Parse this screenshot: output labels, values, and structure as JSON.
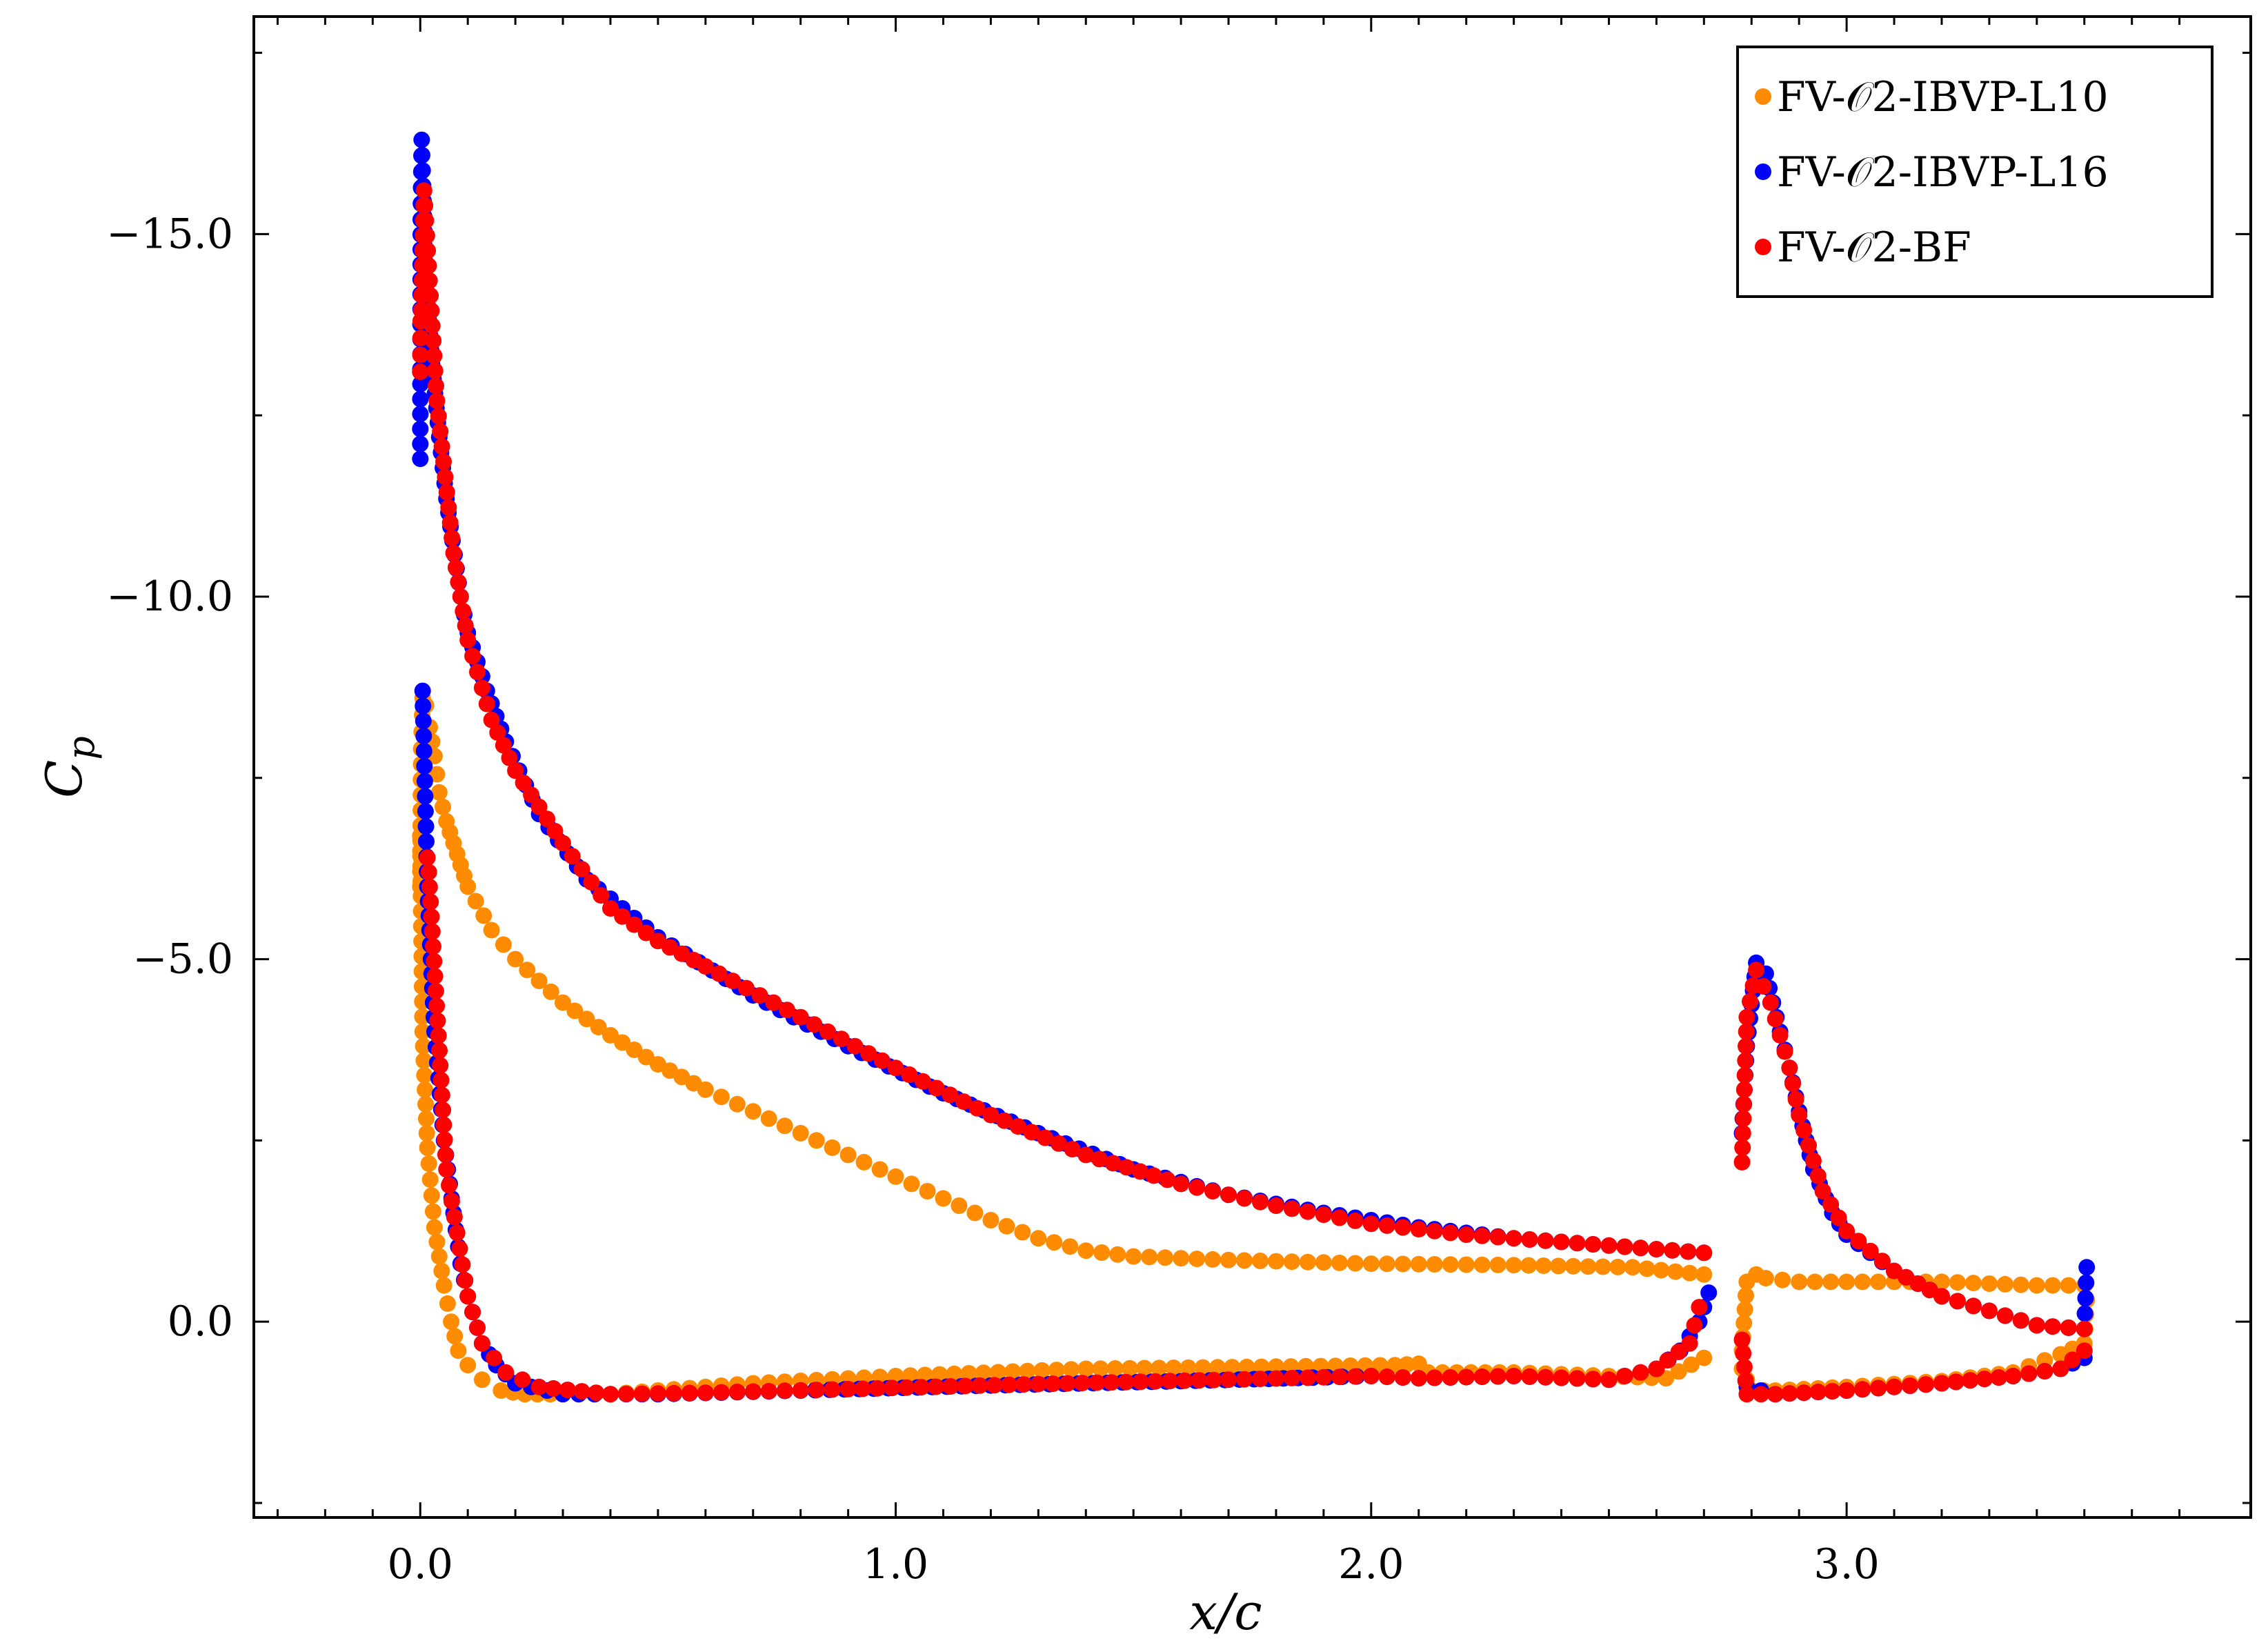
{
  "chart_data": {
    "type": "scatter",
    "title": "",
    "xlabel": "x/c",
    "ylabel": "C_p",
    "ylabel_main": "C",
    "ylabel_sub": "p",
    "xlim": [
      -0.35,
      3.85
    ],
    "ylim": [
      -18.0,
      2.7
    ],
    "y_axis_reversed": true,
    "grid": false,
    "legend_position": "top-right",
    "xticks": [
      0.0,
      1.0,
      2.0,
      3.0
    ],
    "xtick_labels": [
      "0.0",
      "1.0",
      "2.0",
      "3.0"
    ],
    "yticks": [
      -15.0,
      -10.0,
      -5.0,
      0.0
    ],
    "ytick_labels": [
      "−15.0",
      "−10.0",
      "−5.0",
      "0.0"
    ],
    "legend": [
      {
        "name": "FV-𝒪2-IBVP-L10",
        "color": "#ff8c00"
      },
      {
        "name": "FV-𝒪2-IBVP-L16",
        "color": "#0000ff"
      },
      {
        "name": "FV-𝒪2-BF",
        "color": "#ff0000"
      }
    ],
    "series": [
      {
        "name": "FV-𝒪2-IBVP-L10",
        "color": "#ff8c00",
        "upper_main_element": [
          [
            0.0,
            -6.0
          ],
          [
            0.002,
            -7.9
          ],
          [
            0.005,
            -8.6
          ],
          [
            0.012,
            -8.5
          ],
          [
            0.02,
            -8.2
          ],
          [
            0.03,
            -7.8
          ],
          [
            0.04,
            -7.3
          ],
          [
            0.055,
            -6.9
          ],
          [
            0.07,
            -6.6
          ],
          [
            0.085,
            -6.3
          ],
          [
            0.1,
            -6.0
          ],
          [
            0.15,
            -5.4
          ],
          [
            0.2,
            -5.0
          ],
          [
            0.3,
            -4.4
          ],
          [
            0.4,
            -3.95
          ],
          [
            0.5,
            -3.55
          ],
          [
            0.6,
            -3.2
          ],
          [
            0.7,
            -2.9
          ],
          [
            0.8,
            -2.6
          ],
          [
            0.9,
            -2.3
          ],
          [
            1.0,
            -2.0
          ],
          [
            1.1,
            -1.7
          ],
          [
            1.2,
            -1.4
          ],
          [
            1.3,
            -1.15
          ],
          [
            1.4,
            -0.98
          ],
          [
            1.5,
            -0.9
          ],
          [
            1.7,
            -0.85
          ],
          [
            2.0,
            -0.8
          ],
          [
            2.3,
            -0.78
          ],
          [
            2.55,
            -0.75
          ],
          [
            2.7,
            -0.65
          ]
        ],
        "lower_main_element": [
          [
            0.0,
            -6.7
          ],
          [
            0.005,
            -4.0
          ],
          [
            0.015,
            -2.4
          ],
          [
            0.03,
            -1.3
          ],
          [
            0.05,
            -0.5
          ],
          [
            0.065,
            0.0
          ],
          [
            0.08,
            0.4
          ],
          [
            0.1,
            0.6
          ],
          [
            0.13,
            0.8
          ],
          [
            0.17,
            0.95
          ],
          [
            0.22,
            1.0
          ],
          [
            0.3,
            1.0
          ],
          [
            0.4,
            1.0
          ],
          [
            0.5,
            0.95
          ],
          [
            0.7,
            0.85
          ],
          [
            1.0,
            0.75
          ],
          [
            1.4,
            0.65
          ],
          [
            1.8,
            0.62
          ],
          [
            2.05,
            0.6
          ],
          [
            2.1,
            0.58
          ],
          [
            2.12,
            0.7
          ],
          [
            2.3,
            0.7
          ],
          [
            2.5,
            0.75
          ],
          [
            2.62,
            0.78
          ],
          [
            2.7,
            0.5
          ]
        ],
        "upper_flap": [
          [
            2.78,
            0.4
          ],
          [
            2.79,
            -0.55
          ],
          [
            2.81,
            -0.65
          ],
          [
            2.83,
            -0.6
          ],
          [
            2.9,
            -0.55
          ],
          [
            3.0,
            -0.55
          ],
          [
            3.2,
            -0.55
          ],
          [
            3.4,
            -0.5
          ],
          [
            3.5,
            -0.5
          ]
        ],
        "lower_flap": [
          [
            2.78,
            0.65
          ],
          [
            2.8,
            0.95
          ],
          [
            2.85,
            0.95
          ],
          [
            3.0,
            0.9
          ],
          [
            3.2,
            0.82
          ],
          [
            3.35,
            0.7
          ],
          [
            3.45,
            0.45
          ],
          [
            3.5,
            0.3
          ],
          [
            3.505,
            -0.3
          ]
        ]
      },
      {
        "name": "FV-𝒪2-IBVP-L16",
        "color": "#0000ff",
        "upper_main_element": [
          [
            0.0,
            -11.9
          ],
          [
            0.001,
            -15.2
          ],
          [
            0.003,
            -16.3
          ],
          [
            0.012,
            -14.4
          ],
          [
            0.025,
            -13.2
          ],
          [
            0.04,
            -12.2
          ],
          [
            0.055,
            -11.35
          ],
          [
            0.085,
            -10.0
          ],
          [
            0.1,
            -9.5
          ],
          [
            0.14,
            -8.7
          ],
          [
            0.18,
            -8.0
          ],
          [
            0.25,
            -7.0
          ],
          [
            0.35,
            -6.1
          ],
          [
            0.5,
            -5.3
          ],
          [
            0.7,
            -4.5
          ],
          [
            0.9,
            -3.8
          ],
          [
            1.1,
            -3.15
          ],
          [
            1.3,
            -2.6
          ],
          [
            1.5,
            -2.1
          ],
          [
            1.7,
            -1.75
          ],
          [
            1.9,
            -1.5
          ],
          [
            2.1,
            -1.3
          ],
          [
            2.3,
            -1.15
          ],
          [
            2.5,
            -1.05
          ],
          [
            2.7,
            -0.95
          ]
        ],
        "lower_main_element": [
          [
            0.005,
            -8.7
          ],
          [
            0.015,
            -6.0
          ],
          [
            0.03,
            -4.0
          ],
          [
            0.05,
            -2.5
          ],
          [
            0.07,
            -1.5
          ],
          [
            0.085,
            -0.8
          ],
          [
            0.1,
            -0.35
          ],
          [
            0.13,
            0.3
          ],
          [
            0.16,
            0.6
          ],
          [
            0.2,
            0.85
          ],
          [
            0.3,
            1.0
          ],
          [
            0.5,
            1.0
          ],
          [
            0.8,
            0.95
          ],
          [
            1.2,
            0.88
          ],
          [
            1.6,
            0.82
          ],
          [
            2.0,
            0.75
          ],
          [
            2.1,
            0.78
          ],
          [
            2.3,
            0.75
          ],
          [
            2.5,
            0.8
          ],
          [
            2.6,
            0.65
          ],
          [
            2.65,
            0.4
          ],
          [
            2.69,
            0.0
          ],
          [
            2.71,
            -0.4
          ]
        ],
        "upper_flap": [
          [
            2.78,
            -2.6
          ],
          [
            2.79,
            -3.8
          ],
          [
            2.81,
            -4.95
          ],
          [
            2.83,
            -4.8
          ],
          [
            2.86,
            -4.0
          ],
          [
            2.88,
            -3.5
          ],
          [
            2.9,
            -2.9
          ],
          [
            2.93,
            -2.1
          ],
          [
            2.97,
            -1.5
          ],
          [
            3.0,
            -1.2
          ],
          [
            3.1,
            -0.7
          ],
          [
            3.2,
            -0.35
          ],
          [
            3.3,
            -0.15
          ],
          [
            3.4,
            0.05
          ],
          [
            3.5,
            0.1
          ],
          [
            3.505,
            -0.75
          ]
        ],
        "lower_flap": [
          [
            2.79,
            0.9
          ],
          [
            2.85,
            1.0
          ],
          [
            3.0,
            0.95
          ],
          [
            3.2,
            0.85
          ],
          [
            3.35,
            0.75
          ],
          [
            3.45,
            0.65
          ],
          [
            3.5,
            0.5
          ]
        ]
      },
      {
        "name": "FV-𝒪2-BF",
        "color": "#ff0000",
        "upper_main_element": [
          [
            0.0,
            -13.1
          ],
          [
            0.001,
            -13.8
          ],
          [
            0.002,
            -13.95
          ],
          [
            0.008,
            -15.6
          ],
          [
            0.035,
            -12.7
          ],
          [
            0.07,
            -10.6
          ],
          [
            0.1,
            -9.4
          ],
          [
            0.15,
            -8.3
          ],
          [
            0.2,
            -7.6
          ],
          [
            0.3,
            -6.6
          ],
          [
            0.4,
            -5.7
          ],
          [
            0.5,
            -5.25
          ],
          [
            0.6,
            -4.9
          ],
          [
            0.8,
            -4.2
          ],
          [
            1.0,
            -3.5
          ],
          [
            1.2,
            -2.85
          ],
          [
            1.4,
            -2.3
          ],
          [
            1.6,
            -1.9
          ],
          [
            1.8,
            -1.6
          ],
          [
            2.0,
            -1.35
          ],
          [
            2.2,
            -1.2
          ],
          [
            2.4,
            -1.1
          ],
          [
            2.6,
            -1.0
          ],
          [
            2.7,
            -0.95
          ]
        ],
        "lower_main_element": [
          [
            0.015,
            -6.4
          ],
          [
            0.018,
            -6.2
          ],
          [
            0.055,
            -2.1
          ],
          [
            0.1,
            -0.35
          ],
          [
            0.13,
            0.3
          ],
          [
            0.18,
            0.7
          ],
          [
            0.25,
            0.9
          ],
          [
            0.4,
            1.0
          ],
          [
            0.6,
            0.98
          ],
          [
            0.9,
            0.93
          ],
          [
            1.3,
            0.86
          ],
          [
            1.7,
            0.8
          ],
          [
            2.0,
            0.75
          ],
          [
            2.1,
            0.78
          ],
          [
            2.3,
            0.75
          ],
          [
            2.5,
            0.8
          ],
          [
            2.6,
            0.65
          ],
          [
            2.67,
            0.3
          ],
          [
            2.69,
            -0.2
          ]
        ],
        "upper_flap": [
          [
            2.78,
            -2.2
          ],
          [
            2.79,
            -4.2
          ],
          [
            2.81,
            -4.85
          ],
          [
            2.84,
            -4.4
          ],
          [
            2.88,
            -3.5
          ],
          [
            2.9,
            -2.85
          ],
          [
            2.95,
            -1.8
          ],
          [
            3.0,
            -1.25
          ],
          [
            3.1,
            -0.7
          ],
          [
            3.2,
            -0.35
          ],
          [
            3.3,
            -0.15
          ],
          [
            3.4,
            0.05
          ],
          [
            3.5,
            0.1
          ]
        ],
        "lower_flap": [
          [
            2.78,
            0.25
          ],
          [
            2.79,
            1.0
          ],
          [
            2.85,
            1.0
          ],
          [
            3.0,
            0.95
          ],
          [
            3.2,
            0.85
          ],
          [
            3.35,
            0.75
          ],
          [
            3.45,
            0.65
          ],
          [
            3.5,
            0.4
          ]
        ]
      }
    ]
  }
}
